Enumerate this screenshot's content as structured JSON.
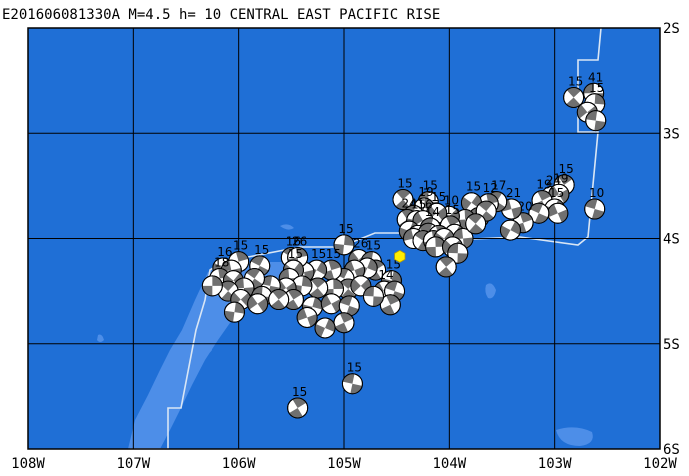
{
  "title": "E201606081330A M=4.5 h= 10 CENTRAL EAST PACIFIC RISE",
  "colors": {
    "ocean": "#1f6fd6",
    "shallow": "#4d8ee8",
    "grid": "#000000",
    "plate_boundary": "#d9e6f5",
    "beachball_dark": "#707070",
    "beachball_light": "#ffffff",
    "epicenter": "#ffee00"
  },
  "axes": {
    "lon_labels": [
      "108W",
      "107W",
      "106W",
      "105W",
      "104W",
      "103W",
      "102W"
    ],
    "lat_labels": [
      "2S",
      "3S",
      "4S",
      "5S",
      "6S"
    ],
    "lon_range": [
      -108,
      -102
    ],
    "lat_range": [
      -6,
      -2
    ]
  },
  "epicenter": {
    "lon": -104.47,
    "lat": -4.17
  },
  "mechanisms": [
    {
      "lon": -102.63,
      "lat": -2.62,
      "depth": "41"
    },
    {
      "lon": -102.82,
      "lat": -2.66,
      "depth": "15"
    },
    {
      "lon": -102.62,
      "lat": -2.72,
      "depth": "15"
    },
    {
      "lon": -102.69,
      "lat": -2.8,
      "depth": ""
    },
    {
      "lon": -102.61,
      "lat": -2.88,
      "depth": ""
    },
    {
      "lon": -102.91,
      "lat": -3.49,
      "depth": "15"
    },
    {
      "lon": -103.03,
      "lat": -3.6,
      "depth": "24"
    },
    {
      "lon": -102.96,
      "lat": -3.58,
      "depth": "19"
    },
    {
      "lon": -102.62,
      "lat": -3.72,
      "depth": "10"
    },
    {
      "lon": -103.12,
      "lat": -3.64,
      "depth": "19"
    },
    {
      "lon": -103.0,
      "lat": -3.72,
      "depth": "15"
    },
    {
      "lon": -102.97,
      "lat": -3.76,
      "depth": ""
    },
    {
      "lon": -103.15,
      "lat": -3.76,
      "depth": ""
    },
    {
      "lon": -103.3,
      "lat": -3.85,
      "depth": "20"
    },
    {
      "lon": -103.42,
      "lat": -3.92,
      "depth": "18"
    },
    {
      "lon": -103.41,
      "lat": -3.72,
      "depth": "21"
    },
    {
      "lon": -103.55,
      "lat": -3.65,
      "depth": "17"
    },
    {
      "lon": -103.63,
      "lat": -3.67,
      "depth": "12"
    },
    {
      "lon": -103.79,
      "lat": -3.66,
      "depth": "15"
    },
    {
      "lon": -103.72,
      "lat": -3.8,
      "depth": ""
    },
    {
      "lon": -103.65,
      "lat": -3.74,
      "depth": ""
    },
    {
      "lon": -103.85,
      "lat": -3.82,
      "depth": ""
    },
    {
      "lon": -104.0,
      "lat": -3.79,
      "depth": "10"
    },
    {
      "lon": -104.2,
      "lat": -3.65,
      "depth": "15"
    },
    {
      "lon": -104.44,
      "lat": -3.63,
      "depth": "15"
    },
    {
      "lon": -104.24,
      "lat": -3.71,
      "depth": "19"
    },
    {
      "lon": -104.12,
      "lat": -3.76,
      "depth": "15"
    },
    {
      "lon": -104.34,
      "lat": -3.78,
      "depth": ""
    },
    {
      "lon": -104.4,
      "lat": -3.82,
      "depth": "24"
    },
    {
      "lon": -104.31,
      "lat": -3.83,
      "depth": "15"
    },
    {
      "lon": -104.25,
      "lat": -3.83,
      "depth": "16"
    },
    {
      "lon": -104.18,
      "lat": -3.9,
      "depth": "14"
    },
    {
      "lon": -103.99,
      "lat": -3.88,
      "depth": "15"
    },
    {
      "lon": -104.38,
      "lat": -3.93,
      "depth": ""
    },
    {
      "lon": -104.3,
      "lat": -3.97,
      "depth": ""
    },
    {
      "lon": -104.2,
      "lat": -3.95,
      "depth": ""
    },
    {
      "lon": -104.1,
      "lat": -3.97,
      "depth": ""
    },
    {
      "lon": -103.95,
      "lat": -3.96,
      "depth": ""
    },
    {
      "lon": -104.34,
      "lat": -4.0,
      "depth": ""
    },
    {
      "lon": -104.25,
      "lat": -4.02,
      "depth": ""
    },
    {
      "lon": -104.15,
      "lat": -4.02,
      "depth": ""
    },
    {
      "lon": -104.05,
      "lat": -4.0,
      "depth": ""
    },
    {
      "lon": -103.87,
      "lat": -4.0,
      "depth": ""
    },
    {
      "lon": -103.75,
      "lat": -3.86,
      "depth": ""
    },
    {
      "lon": -104.13,
      "lat": -4.08,
      "depth": ""
    },
    {
      "lon": -103.97,
      "lat": -4.08,
      "depth": ""
    },
    {
      "lon": -103.92,
      "lat": -4.14,
      "depth": ""
    },
    {
      "lon": -104.03,
      "lat": -4.27,
      "depth": ""
    },
    {
      "lon": -105.0,
      "lat": -4.06,
      "depth": "15"
    },
    {
      "lon": -104.86,
      "lat": -4.2,
      "depth": "26"
    },
    {
      "lon": -104.74,
      "lat": -4.22,
      "depth": "15"
    },
    {
      "lon": -104.7,
      "lat": -4.3,
      "depth": ""
    },
    {
      "lon": -104.55,
      "lat": -4.4,
      "depth": "15"
    },
    {
      "lon": -104.62,
      "lat": -4.5,
      "depth": "14"
    },
    {
      "lon": -104.52,
      "lat": -4.5,
      "depth": ""
    },
    {
      "lon": -104.56,
      "lat": -4.63,
      "depth": ""
    },
    {
      "lon": -104.78,
      "lat": -4.28,
      "depth": ""
    },
    {
      "lon": -104.9,
      "lat": -4.3,
      "depth": ""
    },
    {
      "lon": -105.0,
      "lat": -4.38,
      "depth": ""
    },
    {
      "lon": -105.12,
      "lat": -4.3,
      "depth": "15"
    },
    {
      "lon": -105.26,
      "lat": -4.3,
      "depth": "15"
    },
    {
      "lon": -105.38,
      "lat": -4.32,
      "depth": ""
    },
    {
      "lon": -105.5,
      "lat": -4.18,
      "depth": "16"
    },
    {
      "lon": -105.44,
      "lat": -4.18,
      "depth": "26"
    },
    {
      "lon": -105.48,
      "lat": -4.3,
      "depth": "15"
    },
    {
      "lon": -105.52,
      "lat": -4.38,
      "depth": ""
    },
    {
      "lon": -104.96,
      "lat": -4.48,
      "depth": ""
    },
    {
      "lon": -105.1,
      "lat": -4.48,
      "depth": ""
    },
    {
      "lon": -104.84,
      "lat": -4.45,
      "depth": ""
    },
    {
      "lon": -104.72,
      "lat": -4.55,
      "depth": ""
    },
    {
      "lon": -105.25,
      "lat": -4.47,
      "depth": ""
    },
    {
      "lon": -105.4,
      "lat": -4.45,
      "depth": ""
    },
    {
      "lon": -105.55,
      "lat": -4.47,
      "depth": ""
    },
    {
      "lon": -105.7,
      "lat": -4.45,
      "depth": ""
    },
    {
      "lon": -105.48,
      "lat": -4.58,
      "depth": ""
    },
    {
      "lon": -105.3,
      "lat": -4.65,
      "depth": ""
    },
    {
      "lon": -105.12,
      "lat": -4.62,
      "depth": ""
    },
    {
      "lon": -104.95,
      "lat": -4.64,
      "depth": ""
    },
    {
      "lon": -105.0,
      "lat": -4.8,
      "depth": ""
    },
    {
      "lon": -105.18,
      "lat": -4.85,
      "depth": ""
    },
    {
      "lon": -105.35,
      "lat": -4.75,
      "depth": ""
    },
    {
      "lon": -105.8,
      "lat": -4.26,
      "depth": "15"
    },
    {
      "lon": -106.0,
      "lat": -4.22,
      "depth": "15"
    },
    {
      "lon": -106.15,
      "lat": -4.28,
      "depth": "16"
    },
    {
      "lon": -106.07,
      "lat": -4.3,
      "depth": ""
    },
    {
      "lon": -105.85,
      "lat": -4.38,
      "depth": ""
    },
    {
      "lon": -106.18,
      "lat": -4.38,
      "depth": "18"
    },
    {
      "lon": -106.05,
      "lat": -4.4,
      "depth": ""
    },
    {
      "lon": -105.95,
      "lat": -4.47,
      "depth": ""
    },
    {
      "lon": -106.1,
      "lat": -4.5,
      "depth": ""
    },
    {
      "lon": -106.25,
      "lat": -4.45,
      "depth": ""
    },
    {
      "lon": -105.98,
      "lat": -4.58,
      "depth": ""
    },
    {
      "lon": -105.78,
      "lat": -4.55,
      "depth": ""
    },
    {
      "lon": -105.62,
      "lat": -4.58,
      "depth": ""
    },
    {
      "lon": -106.04,
      "lat": -4.7,
      "depth": ""
    },
    {
      "lon": -105.82,
      "lat": -4.62,
      "depth": ""
    },
    {
      "lon": -104.92,
      "lat": -5.38,
      "depth": "15"
    },
    {
      "lon": -105.44,
      "lat": -5.61,
      "depth": "15"
    }
  ]
}
